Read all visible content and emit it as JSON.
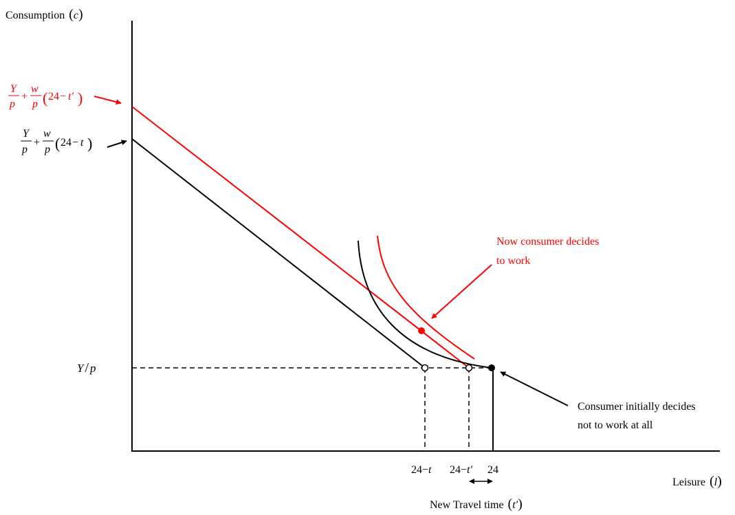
{
  "axes": {
    "y_label": "Consumption",
    "y_symbol": "c",
    "x_label": "Leisure",
    "x_symbol": "l"
  },
  "intercepts": {
    "new": {
      "num1": "Y",
      "den1": "p",
      "plus": "+",
      "num2": "w",
      "den2": "p",
      "paren_open": "(",
      "value": "24",
      "minus": "−",
      "var": "t'",
      "paren_close": ")"
    },
    "old": {
      "num1": "Y",
      "den1": "p",
      "plus": "+",
      "num2": "w",
      "den2": "p",
      "paren_open": "(",
      "value": "24",
      "minus": "−",
      "var": "t",
      "paren_close": ")"
    }
  },
  "endowment_label": {
    "num": "Y",
    "slash": "/",
    "den": "p"
  },
  "ticks": {
    "old_time": {
      "value": "24",
      "minus": "−",
      "var": "t"
    },
    "new_time": {
      "value": "24",
      "minus": "−",
      "var": "t'"
    },
    "total": "24"
  },
  "annotations": {
    "new_choice_line1": "Now consumer decides",
    "new_choice_line2": "to work",
    "initial_choice_line1": "Consumer initially decides",
    "initial_choice_line2": "not to work at all",
    "travel_time_text": "New Travel time",
    "travel_time_symbol": "t'"
  },
  "colors": {
    "new": "#ff0000",
    "old": "#000000"
  }
}
